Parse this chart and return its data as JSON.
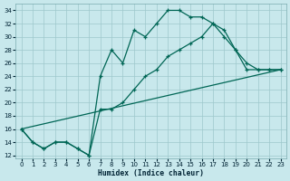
{
  "xlabel": "Humidex (Indice chaleur)",
  "background_color": "#c8e8ec",
  "grid_color": "#9ec8cc",
  "line_color": "#006655",
  "xlim": [
    -0.5,
    23.5
  ],
  "ylim": [
    11.5,
    35.0
  ],
  "yticks": [
    12,
    14,
    16,
    18,
    20,
    22,
    24,
    26,
    28,
    30,
    32,
    34
  ],
  "xticks": [
    0,
    1,
    2,
    3,
    4,
    5,
    6,
    7,
    8,
    9,
    10,
    11,
    12,
    13,
    14,
    15,
    16,
    17,
    18,
    19,
    20,
    21,
    22,
    23
  ],
  "curve1_x": [
    0,
    1,
    2,
    3,
    4,
    5,
    6,
    7,
    8,
    9,
    10,
    11,
    12,
    13,
    14,
    15,
    16,
    17,
    18,
    19,
    20,
    21,
    22,
    23
  ],
  "curve1_y": [
    16,
    14,
    13,
    14,
    14,
    13,
    12,
    24,
    28,
    26,
    31,
    30,
    32,
    34,
    34,
    33,
    33,
    32,
    31,
    28,
    26,
    25,
    25,
    25
  ],
  "curve2_x": [
    0,
    1,
    2,
    3,
    4,
    5,
    6,
    7,
    8,
    9,
    10,
    11,
    12,
    13,
    14,
    15,
    16,
    17,
    18,
    19,
    20,
    21,
    22,
    23
  ],
  "curve2_y": [
    16,
    14,
    13,
    14,
    14,
    13,
    12,
    19,
    19,
    20,
    22,
    24,
    25,
    27,
    28,
    29,
    30,
    32,
    30,
    28,
    25,
    25,
    25,
    25
  ],
  "line3_x": [
    0,
    23
  ],
  "line3_y": [
    16,
    25
  ]
}
